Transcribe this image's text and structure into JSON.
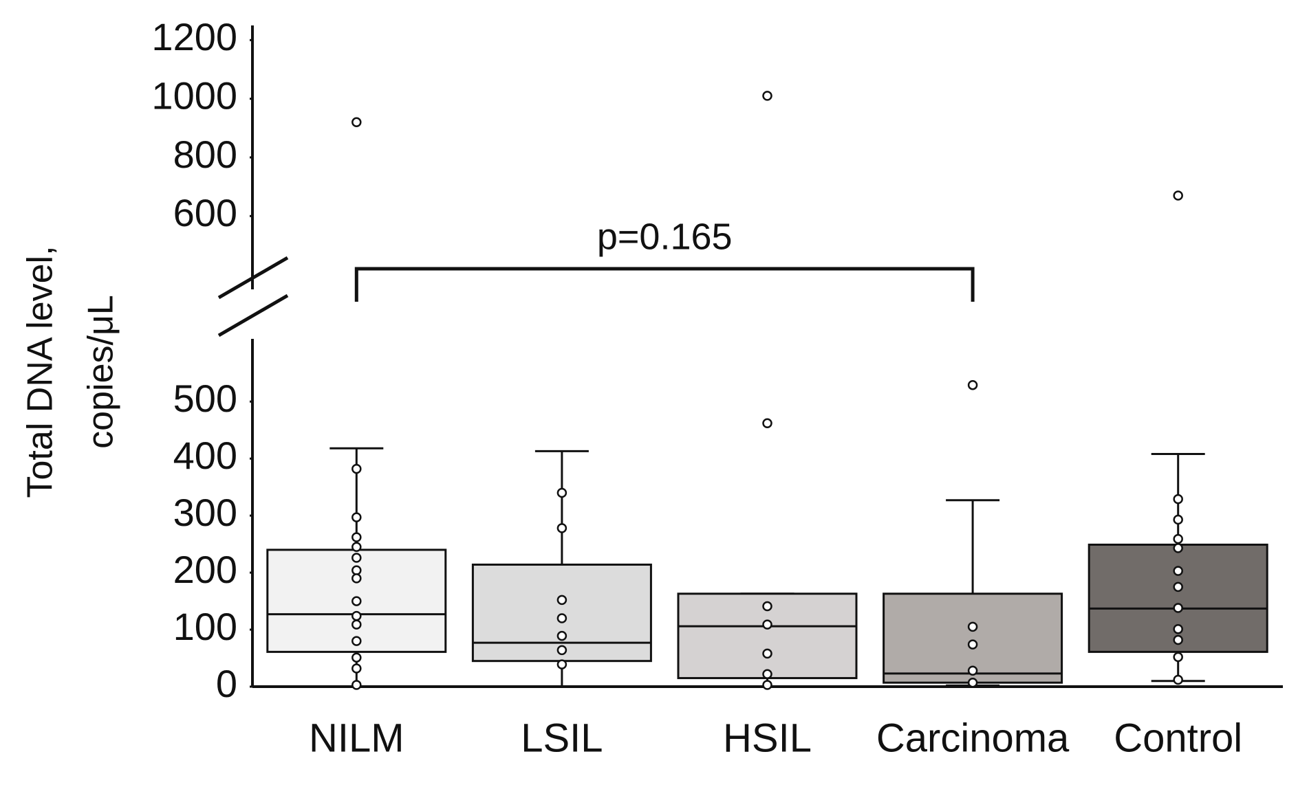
{
  "chart_data": {
    "type": "box",
    "y_label": [
      "Total DNA level,",
      "copies/μL"
    ],
    "annotation": "p=0.165",
    "bracket": [
      "NILM",
      "Carcinoma"
    ],
    "ylim": [
      0,
      610
    ],
    "yticks": [
      0,
      100,
      200,
      300,
      400,
      500
    ],
    "ylim_upper": [
      350,
      1250
    ],
    "yticks_upper": [
      600,
      800,
      1000,
      1200
    ],
    "categories": [
      "NILM",
      "LSIL",
      "HSIL",
      "Carcinoma",
      "Control"
    ],
    "series": [
      {
        "name": "NILM",
        "color": "#f2f2f2",
        "whisker_low": 0,
        "q1": 61,
        "median": 127,
        "q3": 240,
        "whisker_high": 418,
        "points": [
          382,
          297,
          262,
          245,
          226,
          204,
          190,
          150,
          124,
          109,
          80,
          51,
          32,
          3
        ],
        "outliers": [
          920
        ]
      },
      {
        "name": "LSIL",
        "color": "#dcdcdc",
        "whisker_low": 0,
        "q1": 45,
        "median": 77,
        "q3": 214,
        "whisker_high": 413,
        "points": [
          340,
          278,
          152,
          120,
          89,
          64,
          39
        ],
        "outliers": []
      },
      {
        "name": "HSIL",
        "color": "#d5d2d2",
        "whisker_low": 0,
        "q1": 15,
        "median": 106,
        "q3": 163,
        "whisker_high": 163,
        "points": [
          141,
          109,
          58,
          22,
          3
        ],
        "outliers": [
          462,
          1010
        ]
      },
      {
        "name": "Carcinoma",
        "color": "#b0aba8",
        "whisker_low": 2,
        "q1": 7,
        "median": 23,
        "q3": 163,
        "whisker_high": 327,
        "points": [
          105,
          74,
          28,
          7
        ],
        "outliers": [
          529
        ]
      },
      {
        "name": "Control",
        "color": "#716c69",
        "whisker_low": 10,
        "q1": 61,
        "median": 137,
        "q3": 249,
        "whisker_high": 408,
        "points": [
          329,
          293,
          259,
          243,
          203,
          175,
          138,
          101,
          82,
          52,
          12
        ],
        "outliers": [
          670
        ]
      }
    ]
  }
}
